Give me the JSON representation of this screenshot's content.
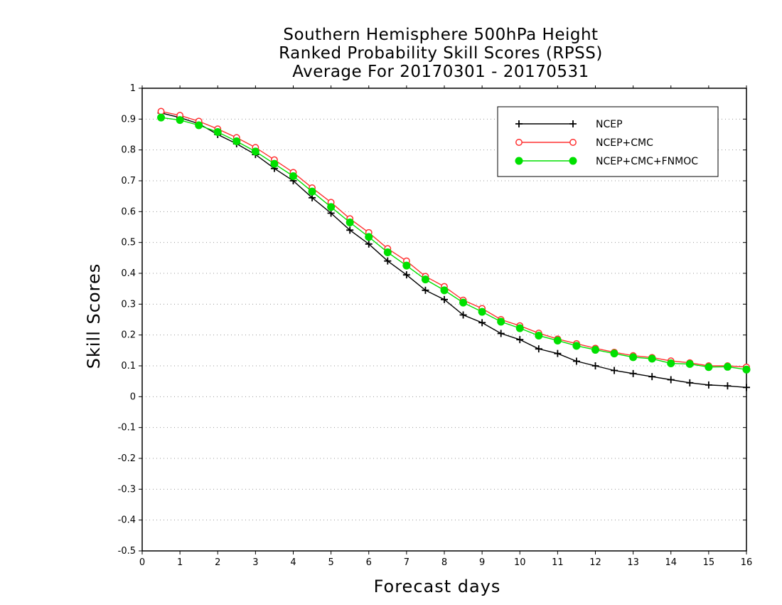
{
  "chart_data": {
    "type": "line",
    "title": [
      "Southern Hemisphere 500hPa Height",
      "Ranked Probability Skill Scores (RPSS)",
      "Average For 20170301 - 20170531"
    ],
    "xlabel": "Forecast days",
    "ylabel": "Skill Scores",
    "xlim": [
      0,
      16
    ],
    "ylim": [
      -0.5,
      1
    ],
    "xticks": [
      "0",
      "1",
      "2",
      "3",
      "4",
      "5",
      "6",
      "7",
      "8",
      "9",
      "10",
      "11",
      "12",
      "13",
      "14",
      "15",
      "16"
    ],
    "yticks": [
      "-0.5",
      "-0.4",
      "-0.3",
      "-0.2",
      "-0.1",
      "0",
      "0.1",
      "0.2",
      "0.3",
      "0.4",
      "0.5",
      "0.6",
      "0.7",
      "0.8",
      "0.9",
      "1"
    ],
    "grid": "horizontal dotted",
    "legend_position": "top-right",
    "x": [
      0.5,
      1,
      1.5,
      2,
      2.5,
      3,
      3.5,
      4,
      4.5,
      5,
      5.5,
      6,
      6.5,
      7,
      7.5,
      8,
      8.5,
      9,
      9.5,
      10,
      10.5,
      11,
      11.5,
      12,
      12.5,
      13,
      13.5,
      14,
      14.5,
      15,
      15.5,
      16
    ],
    "series": [
      {
        "name": "NCEP",
        "color": "#000000",
        "marker": "plus",
        "values": [
          0.92,
          0.905,
          0.885,
          0.85,
          0.82,
          0.785,
          0.74,
          0.7,
          0.645,
          0.595,
          0.54,
          0.495,
          0.44,
          0.395,
          0.345,
          0.315,
          0.265,
          0.24,
          0.205,
          0.185,
          0.155,
          0.14,
          0.115,
          0.1,
          0.085,
          0.075,
          0.065,
          0.055,
          0.045,
          0.038,
          0.035,
          0.03
        ]
      },
      {
        "name": "NCEP+CMC",
        "color": "#ff3030",
        "marker": "open-circle",
        "values": [
          0.925,
          0.912,
          0.893,
          0.868,
          0.84,
          0.808,
          0.768,
          0.727,
          0.677,
          0.63,
          0.577,
          0.532,
          0.48,
          0.44,
          0.39,
          0.357,
          0.313,
          0.286,
          0.25,
          0.23,
          0.206,
          0.187,
          0.172,
          0.157,
          0.144,
          0.133,
          0.127,
          0.116,
          0.11,
          0.1,
          0.1,
          0.096
        ]
      },
      {
        "name": "NCEP+CMC+FNMOC",
        "color": "#00e000",
        "marker": "filled-circle",
        "values": [
          0.905,
          0.897,
          0.88,
          0.858,
          0.828,
          0.795,
          0.755,
          0.715,
          0.665,
          0.615,
          0.565,
          0.518,
          0.468,
          0.425,
          0.38,
          0.345,
          0.305,
          0.275,
          0.243,
          0.222,
          0.198,
          0.182,
          0.165,
          0.152,
          0.14,
          0.128,
          0.123,
          0.108,
          0.106,
          0.096,
          0.097,
          0.088
        ]
      }
    ]
  }
}
